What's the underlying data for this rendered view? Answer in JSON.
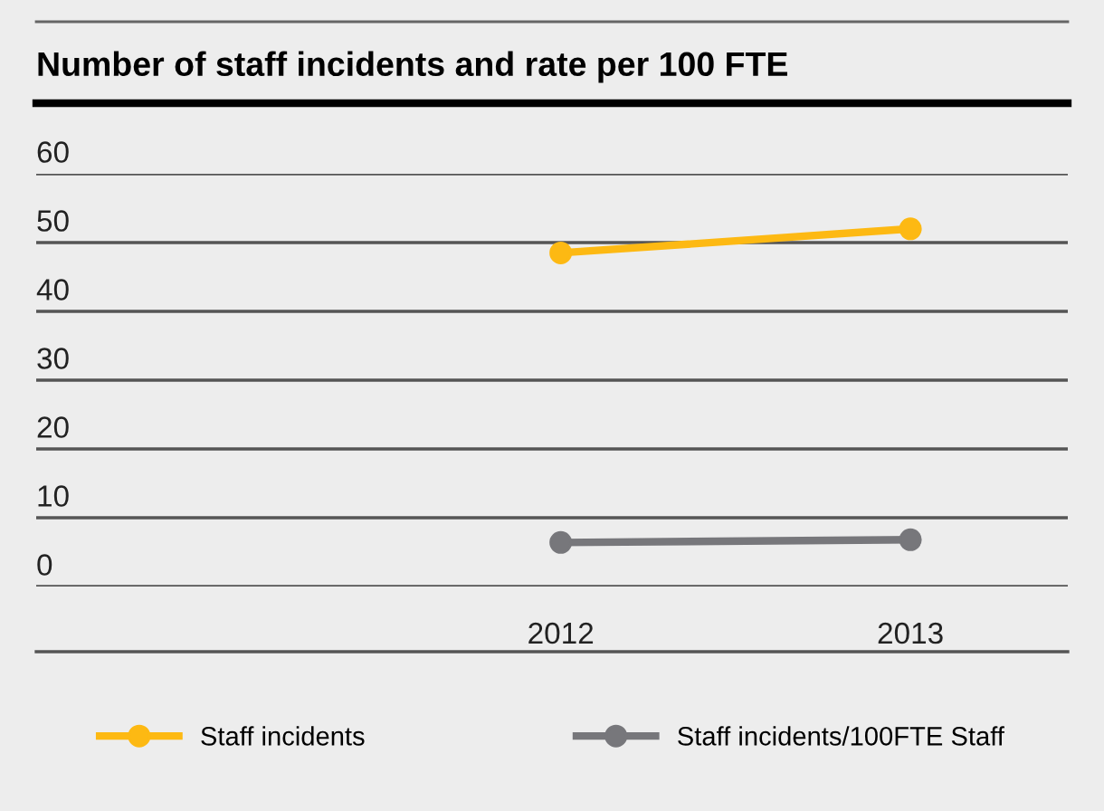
{
  "chart_data": {
    "type": "line",
    "title": "Number of staff incidents and rate per 100 FTE",
    "categories": [
      "2012",
      "2013"
    ],
    "series": [
      {
        "name": "Staff incidents",
        "color": "#fdb913",
        "values": [
          48.5,
          52
        ]
      },
      {
        "name": "Staff incidents/100FTE Staff",
        "color": "#77777b",
        "values": [
          6.4,
          6.8
        ]
      }
    ],
    "ylim": [
      0,
      60
    ],
    "yticks": [
      0,
      10,
      20,
      30,
      40,
      50,
      60
    ],
    "grid": "y",
    "legend": "bottom",
    "marker": "circle",
    "line_style": "solid"
  }
}
